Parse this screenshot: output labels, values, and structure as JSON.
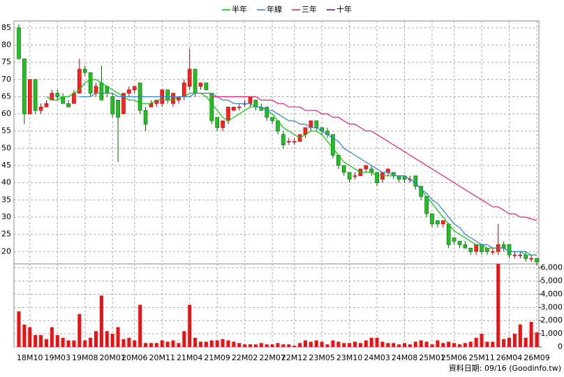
{
  "chart_data": {
    "type": "candlestick",
    "categories": [
      null,
      null,
      "18M10",
      null,
      null,
      null,
      null,
      "19M03",
      null,
      null,
      null,
      null,
      "19M08",
      null,
      null,
      null,
      null,
      "20M01",
      null,
      null,
      null,
      "20M06",
      null,
      null,
      null,
      null,
      "20M11",
      null,
      null,
      null,
      null,
      "21M04",
      null,
      null,
      null,
      null,
      "21M09",
      null,
      null,
      null,
      null,
      "22M02",
      null,
      null,
      null,
      null,
      "22M07",
      null,
      null,
      null,
      "22M12",
      null,
      null,
      null,
      null,
      "23M05",
      null,
      null,
      null,
      null,
      "23M10",
      null,
      null,
      null,
      null,
      "24M03",
      null,
      null,
      null,
      null,
      "24M08",
      null,
      null,
      null,
      null,
      "25M01",
      null,
      null,
      null,
      "25M06",
      null,
      null,
      null,
      null,
      "25M11",
      null,
      null,
      null,
      null,
      "26M04",
      null,
      null,
      null,
      null,
      "26M09"
    ],
    "up_color": "#ff2020",
    "down_color": "#22c022",
    "ohlc": {
      "open": [
        85,
        76,
        60,
        70,
        61,
        62,
        64,
        66,
        65,
        63,
        63,
        66,
        73,
        72,
        66,
        69,
        68,
        65,
        64,
        60,
        66,
        67,
        69,
        61,
        62,
        63,
        63,
        67,
        63,
        64,
        65,
        68,
        73,
        68,
        69,
        66,
        59,
        56,
        58,
        61,
        62,
        63,
        63,
        64,
        62,
        62,
        59,
        58,
        54,
        52,
        52,
        52,
        54,
        56,
        58,
        56,
        55,
        54,
        48,
        45,
        43,
        42,
        42,
        44,
        44,
        43,
        41,
        43,
        43,
        42,
        42,
        41,
        42,
        39,
        36,
        31,
        29,
        28,
        28,
        24,
        23,
        22,
        21,
        20,
        22,
        21,
        20,
        20,
        22,
        22,
        19,
        19,
        19,
        18,
        18
      ],
      "high": [
        86,
        76,
        70,
        70,
        63,
        64,
        67,
        67,
        66,
        64,
        67,
        76,
        74,
        72,
        69,
        74,
        68,
        66,
        64,
        66,
        68,
        68,
        69,
        62,
        64,
        64,
        67,
        67,
        66,
        65,
        70,
        79,
        73,
        69,
        69,
        66,
        59,
        58,
        62,
        62,
        63,
        64,
        65,
        64,
        63,
        62,
        59,
        58,
        55,
        53,
        53,
        54,
        56,
        58,
        58,
        56,
        56,
        54,
        48,
        45,
        43,
        43,
        44,
        45,
        45,
        43,
        43,
        44,
        43,
        42,
        42,
        42,
        42,
        39,
        36,
        31,
        29,
        29,
        28,
        24,
        23,
        23,
        21,
        22,
        22,
        21,
        21,
        28,
        23,
        22,
        20,
        20,
        20,
        19,
        18
      ],
      "low": [
        76,
        57,
        60,
        60,
        60,
        62,
        64,
        64,
        63,
        62,
        63,
        66,
        71,
        65,
        65,
        64,
        65,
        59,
        46,
        60,
        65,
        66,
        60,
        55,
        62,
        62,
        62,
        63,
        62,
        63,
        64,
        67,
        65,
        67,
        67,
        57,
        55,
        55,
        57,
        61,
        61,
        62,
        62,
        61,
        61,
        58,
        57,
        54,
        50,
        51,
        51,
        52,
        53,
        55,
        55,
        54,
        53,
        47,
        44,
        42,
        40,
        41,
        42,
        43,
        42,
        39,
        40,
        42,
        41,
        40,
        40,
        40,
        38,
        35,
        30,
        27,
        27,
        27,
        21,
        22,
        21,
        21,
        19,
        19,
        19,
        19,
        19,
        19,
        20,
        18,
        18,
        18,
        17,
        17,
        16
      ],
      "close": [
        76,
        60,
        70,
        61,
        62,
        63,
        66,
        65,
        63,
        62,
        66,
        73,
        72,
        66,
        68,
        64,
        66,
        60,
        59,
        66,
        67,
        68,
        61,
        57,
        63,
        64,
        67,
        64,
        66,
        65,
        69,
        73,
        66,
        69,
        67,
        58,
        56,
        58,
        62,
        62,
        62,
        63,
        65,
        62,
        61,
        59,
        58,
        55,
        51,
        52,
        52,
        54,
        56,
        58,
        56,
        55,
        54,
        48,
        45,
        43,
        41,
        42,
        44,
        45,
        43,
        40,
        43,
        44,
        42,
        41,
        41,
        41,
        39,
        36,
        31,
        28,
        28,
        29,
        22,
        23,
        22,
        21,
        20,
        22,
        20,
        20,
        20,
        22,
        21,
        19,
        19,
        19,
        18,
        18,
        17
      ]
    },
    "series": [
      {
        "name": "半年",
        "color": "#00cc00",
        "values": [
          null,
          null,
          null,
          null,
          null,
          65,
          64,
          64,
          65,
          65,
          66,
          67,
          69,
          70,
          70,
          69,
          68,
          67,
          66,
          65,
          64,
          64,
          63,
          63,
          63,
          64,
          64,
          64,
          64,
          65,
          65,
          66,
          66,
          66,
          65,
          63,
          61,
          59,
          58,
          59,
          60,
          61,
          62,
          62,
          62,
          61,
          60,
          58,
          56,
          55,
          54,
          53,
          54,
          55,
          55,
          54,
          52,
          50,
          48,
          46,
          45,
          44,
          43,
          43,
          43,
          42,
          42,
          42,
          42,
          42,
          42,
          41,
          40,
          38,
          36,
          34,
          32,
          30,
          28,
          26,
          25,
          24,
          23,
          22,
          22,
          21,
          21,
          21,
          21,
          20,
          20,
          20,
          19,
          19,
          19
        ]
      },
      {
        "name": "年線",
        "color": "#2f7fd8",
        "values": [
          null,
          null,
          null,
          null,
          null,
          null,
          null,
          null,
          null,
          null,
          null,
          65,
          65,
          65,
          66,
          66,
          66,
          66,
          65,
          65,
          65,
          65,
          65,
          65,
          65,
          65,
          65,
          65,
          65,
          65,
          65,
          65,
          66,
          66,
          66,
          66,
          65,
          64,
          64,
          63,
          63,
          63,
          63,
          62,
          62,
          61,
          61,
          60,
          59,
          58,
          58,
          57,
          57,
          56,
          56,
          55,
          54,
          53,
          52,
          50,
          49,
          48,
          47,
          46,
          45,
          44,
          43,
          43,
          42,
          42,
          42,
          41,
          40,
          38,
          37,
          35,
          34,
          32,
          30,
          28,
          27,
          25,
          24,
          23,
          22,
          22,
          21,
          21,
          21,
          20,
          20,
          20,
          20,
          19,
          19
        ]
      },
      {
        "name": "三年",
        "color": "#e0206a",
        "values": [
          null,
          null,
          null,
          null,
          null,
          null,
          null,
          null,
          null,
          null,
          null,
          null,
          null,
          null,
          null,
          null,
          null,
          null,
          null,
          null,
          null,
          null,
          null,
          null,
          null,
          null,
          null,
          null,
          null,
          null,
          null,
          null,
          null,
          null,
          null,
          65,
          65,
          65,
          65,
          65,
          65,
          65,
          65,
          65,
          64,
          64,
          64,
          63,
          63,
          62,
          62,
          62,
          61,
          61,
          61,
          60,
          60,
          59,
          59,
          58,
          57,
          57,
          56,
          55,
          55,
          54,
          53,
          52,
          51,
          50,
          49,
          48,
          47,
          46,
          45,
          44,
          43,
          42,
          41,
          40,
          39,
          38,
          37,
          36,
          35,
          34,
          33,
          33,
          32,
          31,
          31,
          30,
          30,
          29.5,
          29
        ]
      },
      {
        "name": "十年",
        "color": "#800080",
        "values": [
          null,
          null,
          null,
          null,
          null,
          null,
          null,
          null,
          null,
          null,
          null,
          null,
          null,
          null,
          null,
          null,
          null,
          null,
          null,
          null,
          null,
          null,
          null,
          null,
          null,
          null,
          null,
          null,
          null,
          null,
          null,
          null,
          null,
          null,
          null,
          null,
          null,
          null,
          null,
          null,
          null,
          null,
          null,
          null,
          null,
          null,
          null,
          null,
          null,
          null,
          null,
          null,
          null,
          null,
          null,
          null,
          null,
          null,
          null,
          null,
          null,
          null,
          null,
          null,
          null,
          null,
          null,
          null,
          null,
          null,
          null,
          null,
          null,
          null,
          null,
          null,
          null,
          null,
          null,
          null,
          null,
          null,
          null,
          null,
          null,
          null,
          null,
          null,
          null,
          null,
          null,
          null,
          null,
          null,
          null
        ]
      }
    ],
    "ylim": [
      16,
      87
    ],
    "yticks": [
      20,
      25,
      30,
      35,
      40,
      45,
      50,
      55,
      60,
      65,
      70,
      75,
      80,
      85
    ],
    "volume": {
      "color": "#ee1111",
      "values": [
        2700,
        1700,
        1500,
        900,
        900,
        600,
        1500,
        900,
        700,
        500,
        500,
        2500,
        500,
        700,
        1200,
        3900,
        1200,
        1000,
        1500,
        600,
        700,
        500,
        3200,
        300,
        300,
        300,
        500,
        400,
        500,
        300,
        1200,
        3200,
        700,
        400,
        400,
        500,
        500,
        600,
        500,
        400,
        300,
        200,
        200,
        200,
        300,
        200,
        200,
        300,
        200,
        200,
        100,
        300,
        500,
        400,
        500,
        400,
        200,
        500,
        400,
        300,
        300,
        400,
        300,
        500,
        700,
        700,
        400,
        300,
        300,
        200,
        300,
        200,
        400,
        500,
        400,
        200,
        500,
        300,
        400,
        300,
        200,
        300,
        400,
        700,
        1000,
        400,
        400,
        6300,
        600,
        700,
        1000,
        1700,
        700,
        1900,
        1100
      ],
      "ylim": [
        0,
        6300
      ],
      "yticks": [
        0,
        {
          "value": 1000,
          "label": "1,000"
        },
        {
          "value": 2000,
          "label": "2,000"
        },
        {
          "value": 3000,
          "label": "3,000"
        },
        {
          "value": 4000,
          "label": "4,000"
        },
        {
          "value": 5000,
          "label": "5,000"
        },
        {
          "value": 6000,
          "label": "6,000"
        }
      ]
    },
    "grid": true,
    "footer": "資料日期: 09/16  (Goodinfo.tw)"
  }
}
